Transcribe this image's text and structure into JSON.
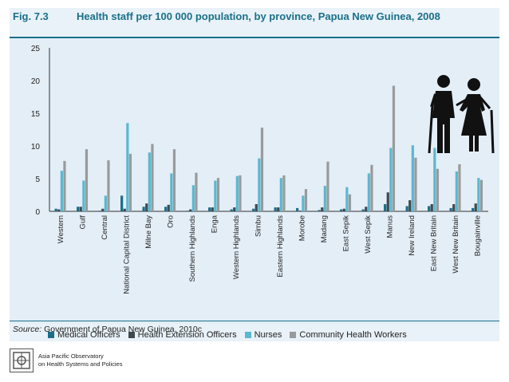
{
  "figure": {
    "label": "Fig. 7.3",
    "title": "Health staff per 100 000 population, by province, Papua New Guinea, 2008",
    "source_prefix": "Source:",
    "source_text": " Government of Papua New Guinea, 2010c"
  },
  "footer": {
    "org_line1": "Asia Pacific Observatory",
    "org_line2": "on Health Systems and Policies"
  },
  "chart_data": {
    "type": "bar",
    "title": "Health staff per 100 000 population, by province, Papua New Guinea, 2008",
    "xlabel": "",
    "ylabel": "",
    "ylim": [
      0,
      25
    ],
    "yticks": [
      0,
      5,
      10,
      15,
      20,
      25
    ],
    "grid": false,
    "legend_position": "bottom",
    "categories": [
      "Western",
      "Gulf",
      "Central",
      "National Capital District",
      "Milne Bay",
      "Oro",
      "Southern Highlands",
      "Enga",
      "Western Highlands",
      "Simbu",
      "Eastern Highlands",
      "Morobe",
      "Madang",
      "East Sepik",
      "West Sepik",
      "Manus",
      "New Ireland",
      "East New Britain",
      "West New Britain",
      "Bougainville"
    ],
    "series": [
      {
        "name": "Medical Officers",
        "color": "#1a6f88",
        "values": [
          0.4,
          0.7,
          0.1,
          2.4,
          0.7,
          0.7,
          0.1,
          0.6,
          0.3,
          0.4,
          0.6,
          0.5,
          0.2,
          0.3,
          0.3,
          1.1,
          0.8,
          0.8,
          0.5,
          0.5
        ]
      },
      {
        "name": "Health Extension Officers",
        "color": "#3f4a4f",
        "values": [
          0.3,
          0.7,
          0.4,
          0.4,
          1.2,
          1.0,
          0.3,
          0.6,
          0.6,
          1.1,
          0.6,
          0.1,
          0.6,
          0.4,
          0.7,
          2.9,
          1.7,
          1.1,
          1.1,
          1.2
        ]
      },
      {
        "name": "Nurses",
        "color": "#5ab8d0",
        "values": [
          6.2,
          4.7,
          2.4,
          13.5,
          9.0,
          5.8,
          4.0,
          4.7,
          5.4,
          8.1,
          5.1,
          2.4,
          3.9,
          3.7,
          5.8,
          9.7,
          10.1,
          9.7,
          6.1,
          5.1
        ]
      },
      {
        "name": "Community Health Workers",
        "color": "#9a9a9a",
        "values": [
          7.7,
          9.5,
          7.8,
          8.8,
          10.3,
          9.5,
          5.9,
          5.1,
          5.5,
          12.8,
          5.5,
          3.4,
          7.6,
          2.6,
          7.1,
          19.2,
          8.2,
          6.5,
          7.2,
          4.8
        ]
      }
    ]
  }
}
